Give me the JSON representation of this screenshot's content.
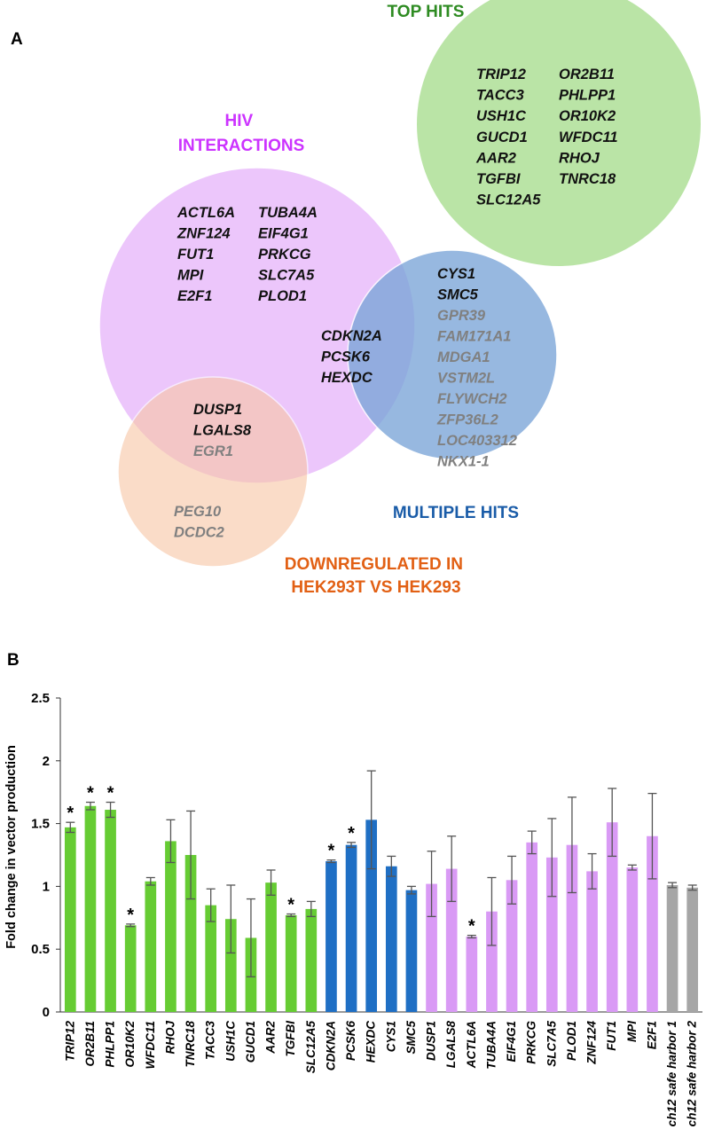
{
  "panel_a": {
    "label": "A",
    "sets": [
      {
        "id": "top",
        "title_lines": [
          "TOP HITS"
        ],
        "color": "#2e8b22",
        "fill": "#b6e3a1"
      },
      {
        "id": "hiv",
        "title_lines": [
          "HIV",
          "INTERACTIONS"
        ],
        "color": "#cc33ff",
        "fill": "#ecc6fb"
      },
      {
        "id": "multiple",
        "title_lines": [
          "MULTIPLE HITS"
        ],
        "color": "#1a5ca8",
        "fill": "#7aa5d8"
      },
      {
        "id": "down",
        "title_lines": [
          "DOWNREGULATED IN",
          "HEK293T VS HEK293"
        ],
        "color": "#e26014",
        "fill": "#f8c7a7"
      }
    ],
    "groups": {
      "top_col1": [
        "TRIP12",
        "TACC3",
        "USH1C",
        "GUCD1",
        "AAR2",
        "TGFBI",
        "SLC12A5"
      ],
      "top_col2": [
        "OR2B11",
        "PHLPP1",
        "OR10K2",
        "WFDC11",
        "RHOJ",
        "TNRC18"
      ],
      "hiv_col1": [
        "ACTL6A",
        "ZNF124",
        "FUT1",
        "MPI",
        "E2F1"
      ],
      "hiv_col2": [
        "TUBA4A",
        "EIF4G1",
        "PRKCG",
        "SLC7A5",
        "PLOD1"
      ],
      "hiv_multiple": [
        "CDKN2A",
        "PCSK6",
        "HEXDC"
      ],
      "multiple_black": [
        "CYS1",
        "SMC5"
      ],
      "multiple_grey": [
        "GPR39",
        "FAM171A1",
        "MDGA1",
        "VSTM2L",
        "FLYWCH2",
        "ZFP36L2",
        "LOC403312",
        "NKX1-1"
      ],
      "hiv_down_black": [
        "DUSP1",
        "LGALS8"
      ],
      "hiv_down_grey": [
        "EGR1"
      ],
      "down_grey": [
        "PEG10",
        "DCDC2"
      ]
    },
    "colors": {
      "black_text": "#111111",
      "grey_text": "#808080"
    }
  },
  "chart_data": {
    "type": "bar",
    "panel_label": "B",
    "ylabel": "Fold change in vector production",
    "xlabel": "",
    "ylim": [
      0,
      2.5
    ],
    "yticks": [
      0,
      0.5,
      1,
      1.5,
      2,
      2.5
    ],
    "ytick_labels": [
      "0",
      "0.5",
      "1",
      "1.5",
      "2",
      "2.5"
    ],
    "categories": [
      "TRIP12",
      "OR2B11",
      "PHLPP1",
      "OR10K2",
      "WFDC11",
      "RHOJ",
      "TNRC18",
      "TACC3",
      "USH1C",
      "GUCD1",
      "AAR2",
      "TGFBI",
      "SLC12A5",
      "CDKN2A",
      "PCSK6",
      "HEXDC",
      "CYS1",
      "SMC5",
      "DUSP1",
      "LGALS8",
      "ACTL6A",
      "TUBA4A",
      "EIF4G1",
      "PRKCG",
      "SLC7A5",
      "PLOD1",
      "ZNF124",
      "FUT1",
      "MPI",
      "E2F1",
      "ch12 safe harbor 1",
      "ch12 safe harbor 2"
    ],
    "values": [
      1.47,
      1.64,
      1.61,
      0.69,
      1.04,
      1.36,
      1.25,
      0.85,
      0.74,
      0.59,
      1.03,
      0.77,
      0.82,
      1.2,
      1.33,
      1.53,
      1.16,
      0.97,
      1.02,
      1.14,
      0.6,
      0.8,
      1.05,
      1.35,
      1.23,
      1.33,
      1.12,
      1.51,
      1.15,
      1.4,
      1.01,
      0.99
    ],
    "errors": [
      0.04,
      0.03,
      0.06,
      0.01,
      0.03,
      0.17,
      0.35,
      0.13,
      0.27,
      0.31,
      0.1,
      0.01,
      0.06,
      0.01,
      0.02,
      0.39,
      0.08,
      0.03,
      0.26,
      0.26,
      0.01,
      0.27,
      0.19,
      0.09,
      0.31,
      0.38,
      0.14,
      0.27,
      0.02,
      0.34,
      0.02,
      0.02
    ],
    "groups": [
      "top",
      "top",
      "top",
      "top",
      "top",
      "top",
      "top",
      "top",
      "top",
      "top",
      "top",
      "top",
      "top",
      "multi",
      "multi",
      "multi",
      "multi",
      "multi",
      "hiv",
      "hiv",
      "hiv",
      "hiv",
      "hiv",
      "hiv",
      "hiv",
      "hiv",
      "hiv",
      "hiv",
      "hiv",
      "hiv",
      "ctrl",
      "ctrl"
    ],
    "group_colors": {
      "top": "#66cc33",
      "multi": "#1f6fc4",
      "hiv": "#d99af5",
      "ctrl": "#a6a6a6"
    },
    "significant": [
      true,
      true,
      true,
      true,
      false,
      false,
      false,
      false,
      false,
      false,
      false,
      true,
      false,
      true,
      true,
      false,
      false,
      false,
      false,
      false,
      true,
      false,
      false,
      false,
      false,
      false,
      false,
      false,
      false,
      false,
      false,
      false
    ],
    "significance_marker": "*",
    "error_bar_color": "#555555"
  }
}
